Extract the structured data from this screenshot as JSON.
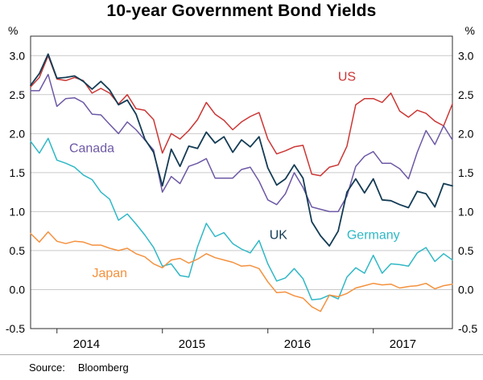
{
  "header": {
    "title": "10-year Government Bond Yields"
  },
  "axes": {
    "unit_left": "%",
    "unit_right": "%"
  },
  "footer": {
    "source_label": "Source:",
    "source_value": "Bloomberg"
  },
  "chart_data": {
    "type": "line",
    "title": "10-year Government Bond Yields",
    "xlabel": "",
    "ylabel": "%",
    "x_start": 2013.75,
    "x_step": 0.0833333,
    "xlim": [
      2013.75,
      2017.75
    ],
    "ylim": [
      -0.5,
      3.0
    ],
    "y_draw_max": 3.25,
    "yticks": [
      -0.5,
      0.0,
      0.5,
      1.0,
      1.5,
      2.0,
      2.5,
      3.0
    ],
    "xtick_years": [
      2014,
      2015,
      2016,
      2017
    ],
    "year_label_offset": 0.28,
    "grid": true,
    "grid_color": "#c9c9c9",
    "frame_color": "#2e2e2e",
    "legend_position": "in-plot-labels",
    "series": [
      {
        "name": "US",
        "color": "#cb3634",
        "width": 1.5,
        "label_x": 2016.75,
        "label_y": 2.68,
        "values": [
          2.6,
          2.72,
          3.0,
          2.7,
          2.68,
          2.72,
          2.68,
          2.52,
          2.58,
          2.52,
          2.38,
          2.5,
          2.32,
          2.3,
          2.18,
          1.75,
          2.0,
          1.93,
          2.04,
          2.18,
          2.4,
          2.25,
          2.17,
          2.05,
          2.15,
          2.22,
          2.27,
          1.93,
          1.74,
          1.78,
          1.83,
          1.85,
          1.48,
          1.46,
          1.57,
          1.6,
          1.84,
          2.37,
          2.45,
          2.45,
          2.4,
          2.52,
          2.29,
          2.21,
          2.3,
          2.26,
          2.16,
          2.1,
          2.38
        ]
      },
      {
        "name": "Canada",
        "color": "#6d58a5",
        "width": 1.5,
        "label_x": 2014.33,
        "label_y": 1.76,
        "values": [
          2.55,
          2.55,
          2.76,
          2.35,
          2.45,
          2.46,
          2.4,
          2.25,
          2.24,
          2.12,
          2.0,
          2.15,
          2.05,
          1.92,
          1.79,
          1.25,
          1.45,
          1.36,
          1.58,
          1.62,
          1.68,
          1.43,
          1.43,
          1.43,
          1.54,
          1.57,
          1.39,
          1.15,
          1.09,
          1.23,
          1.5,
          1.31,
          1.06,
          1.03,
          1.0,
          1.0,
          1.2,
          1.58,
          1.71,
          1.77,
          1.62,
          1.62,
          1.55,
          1.42,
          1.76,
          2.04,
          1.86,
          2.1,
          1.92
        ]
      },
      {
        "name": "UK",
        "color": "#133c55",
        "width": 1.8,
        "label_x": 2016.1,
        "label_y": 0.65,
        "values": [
          2.62,
          2.77,
          3.02,
          2.71,
          2.72,
          2.74,
          2.67,
          2.57,
          2.67,
          2.56,
          2.37,
          2.43,
          2.25,
          1.93,
          1.76,
          1.33,
          1.8,
          1.58,
          1.84,
          1.81,
          2.02,
          1.88,
          1.96,
          1.76,
          1.92,
          1.83,
          1.96,
          1.56,
          1.34,
          1.42,
          1.6,
          1.43,
          0.87,
          0.69,
          0.56,
          0.75,
          1.25,
          1.42,
          1.24,
          1.42,
          1.15,
          1.14,
          1.09,
          1.05,
          1.26,
          1.23,
          1.06,
          1.36,
          1.33
        ]
      },
      {
        "name": "Germany",
        "color": "#2fb8c6",
        "width": 1.5,
        "label_x": 2017.0,
        "label_y": 0.65,
        "values": [
          1.9,
          1.75,
          1.94,
          1.66,
          1.62,
          1.57,
          1.47,
          1.41,
          1.25,
          1.16,
          0.89,
          0.97,
          0.84,
          0.7,
          0.54,
          0.3,
          0.33,
          0.18,
          0.16,
          0.55,
          0.85,
          0.68,
          0.73,
          0.59,
          0.52,
          0.47,
          0.63,
          0.33,
          0.11,
          0.15,
          0.27,
          0.14,
          -0.13,
          -0.12,
          -0.07,
          -0.12,
          0.16,
          0.28,
          0.21,
          0.44,
          0.21,
          0.33,
          0.32,
          0.3,
          0.47,
          0.54,
          0.36,
          0.46,
          0.38
        ]
      },
      {
        "name": "Japan",
        "color": "#f4913e",
        "width": 1.5,
        "label_x": 2014.5,
        "label_y": 0.16,
        "values": [
          0.72,
          0.61,
          0.74,
          0.62,
          0.59,
          0.62,
          0.61,
          0.57,
          0.57,
          0.53,
          0.5,
          0.53,
          0.46,
          0.42,
          0.33,
          0.28,
          0.38,
          0.4,
          0.34,
          0.39,
          0.46,
          0.41,
          0.38,
          0.35,
          0.3,
          0.31,
          0.27,
          0.1,
          -0.04,
          -0.03,
          -0.08,
          -0.11,
          -0.22,
          -0.28,
          -0.07,
          -0.09,
          -0.05,
          0.02,
          0.05,
          0.08,
          0.06,
          0.07,
          0.02,
          0.04,
          0.05,
          0.08,
          0.01,
          0.05,
          0.07
        ]
      }
    ]
  }
}
